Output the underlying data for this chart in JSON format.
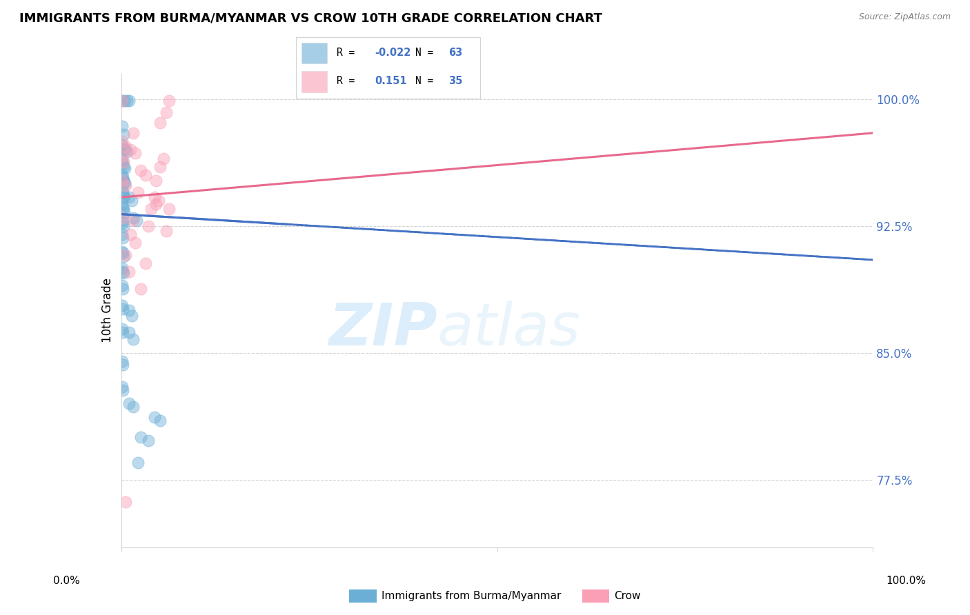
{
  "title": "IMMIGRANTS FROM BURMA/MYANMAR VS CROW 10TH GRADE CORRELATION CHART",
  "source": "Source: ZipAtlas.com",
  "ylabel": "10th Grade",
  "legend_blue_r": "-0.022",
  "legend_blue_n": "63",
  "legend_pink_r": "0.151",
  "legend_pink_n": "35",
  "watermark": "ZIPatlas",
  "blue_color": "#6baed6",
  "pink_color": "#fa9fb5",
  "blue_scatter": [
    [
      0.001,
      0.999
    ],
    [
      0.004,
      0.999
    ],
    [
      0.008,
      0.999
    ],
    [
      0.01,
      0.999
    ],
    [
      0.001,
      0.984
    ],
    [
      0.003,
      0.979
    ],
    [
      0.001,
      0.973
    ],
    [
      0.003,
      0.971
    ],
    [
      0.005,
      0.97
    ],
    [
      0.008,
      0.969
    ],
    [
      0.001,
      0.964
    ],
    [
      0.002,
      0.962
    ],
    [
      0.003,
      0.96
    ],
    [
      0.005,
      0.959
    ],
    [
      0.001,
      0.955
    ],
    [
      0.002,
      0.954
    ],
    [
      0.003,
      0.952
    ],
    [
      0.004,
      0.951
    ],
    [
      0.005,
      0.95
    ],
    [
      0.001,
      0.946
    ],
    [
      0.002,
      0.945
    ],
    [
      0.003,
      0.943
    ],
    [
      0.004,
      0.942
    ],
    [
      0.001,
      0.938
    ],
    [
      0.002,
      0.936
    ],
    [
      0.003,
      0.935
    ],
    [
      0.004,
      0.933
    ],
    [
      0.01,
      0.942
    ],
    [
      0.014,
      0.94
    ],
    [
      0.001,
      0.928
    ],
    [
      0.002,
      0.927
    ],
    [
      0.003,
      0.925
    ],
    [
      0.001,
      0.92
    ],
    [
      0.002,
      0.918
    ],
    [
      0.016,
      0.93
    ],
    [
      0.02,
      0.928
    ],
    [
      0.001,
      0.91
    ],
    [
      0.002,
      0.909
    ],
    [
      0.003,
      0.907
    ],
    [
      0.001,
      0.9
    ],
    [
      0.002,
      0.898
    ],
    [
      0.003,
      0.897
    ],
    [
      0.001,
      0.89
    ],
    [
      0.002,
      0.888
    ],
    [
      0.001,
      0.878
    ],
    [
      0.002,
      0.876
    ],
    [
      0.01,
      0.875
    ],
    [
      0.014,
      0.872
    ],
    [
      0.001,
      0.864
    ],
    [
      0.002,
      0.862
    ],
    [
      0.01,
      0.862
    ],
    [
      0.016,
      0.858
    ],
    [
      0.001,
      0.845
    ],
    [
      0.002,
      0.843
    ],
    [
      0.001,
      0.83
    ],
    [
      0.002,
      0.828
    ],
    [
      0.01,
      0.82
    ],
    [
      0.016,
      0.818
    ],
    [
      0.044,
      0.812
    ],
    [
      0.052,
      0.81
    ],
    [
      0.026,
      0.8
    ],
    [
      0.036,
      0.798
    ],
    [
      0.022,
      0.785
    ]
  ],
  "pink_scatter": [
    [
      0.001,
      0.999
    ],
    [
      0.016,
      0.98
    ],
    [
      0.052,
      0.986
    ],
    [
      0.001,
      0.975
    ],
    [
      0.006,
      0.972
    ],
    [
      0.012,
      0.97
    ],
    [
      0.019,
      0.968
    ],
    [
      0.001,
      0.966
    ],
    [
      0.003,
      0.963
    ],
    [
      0.026,
      0.958
    ],
    [
      0.032,
      0.955
    ],
    [
      0.001,
      0.952
    ],
    [
      0.006,
      0.949
    ],
    [
      0.06,
      0.992
    ],
    [
      0.064,
      0.999
    ],
    [
      0.052,
      0.96
    ],
    [
      0.056,
      0.965
    ],
    [
      0.046,
      0.952
    ],
    [
      0.044,
      0.942
    ],
    [
      0.05,
      0.94
    ],
    [
      0.04,
      0.935
    ],
    [
      0.046,
      0.938
    ],
    [
      0.001,
      0.93
    ],
    [
      0.012,
      0.92
    ],
    [
      0.006,
      0.908
    ],
    [
      0.032,
      0.903
    ],
    [
      0.01,
      0.898
    ],
    [
      0.026,
      0.888
    ],
    [
      0.016,
      0.928
    ],
    [
      0.022,
      0.945
    ],
    [
      0.036,
      0.925
    ],
    [
      0.019,
      0.915
    ],
    [
      0.006,
      0.762
    ],
    [
      0.06,
      0.922
    ],
    [
      0.064,
      0.935
    ]
  ],
  "blue_trend_x": [
    0.0,
    1.0
  ],
  "blue_trend_y": [
    0.932,
    0.905
  ],
  "pink_trend_x": [
    0.0,
    1.0
  ],
  "pink_trend_y": [
    0.942,
    0.98
  ],
  "xlim": [
    0.0,
    1.0
  ],
  "ylim": [
    0.735,
    1.015
  ],
  "yticks": [
    0.775,
    0.85,
    0.925,
    1.0
  ],
  "ytick_labels": [
    "77.5%",
    "85.0%",
    "92.5%",
    "100.0%"
  ]
}
